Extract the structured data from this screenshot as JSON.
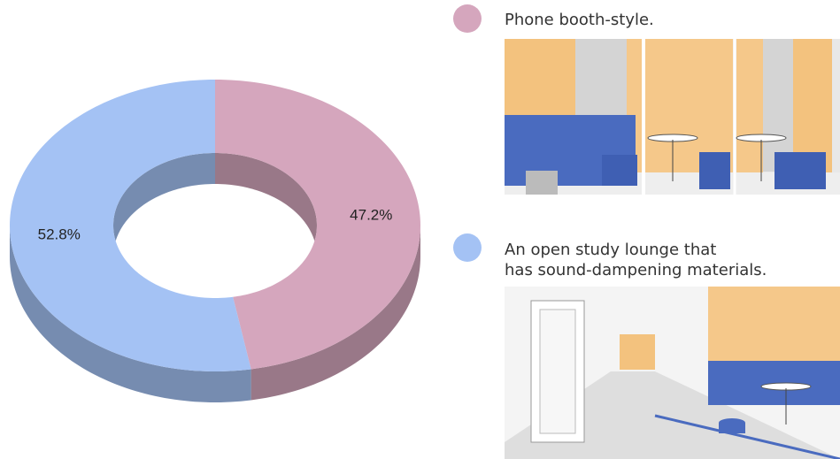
{
  "chart_data": {
    "type": "pie",
    "style": "3d-donut",
    "categories": [
      "Phone booth-style.",
      "An open study lounge that has sound-dampening materials."
    ],
    "values": [
      47.2,
      52.8
    ],
    "value_labels": [
      "47.2%",
      "52.8%"
    ],
    "colors": [
      "#d5a6bd",
      "#a4c2f4"
    ]
  }
}
